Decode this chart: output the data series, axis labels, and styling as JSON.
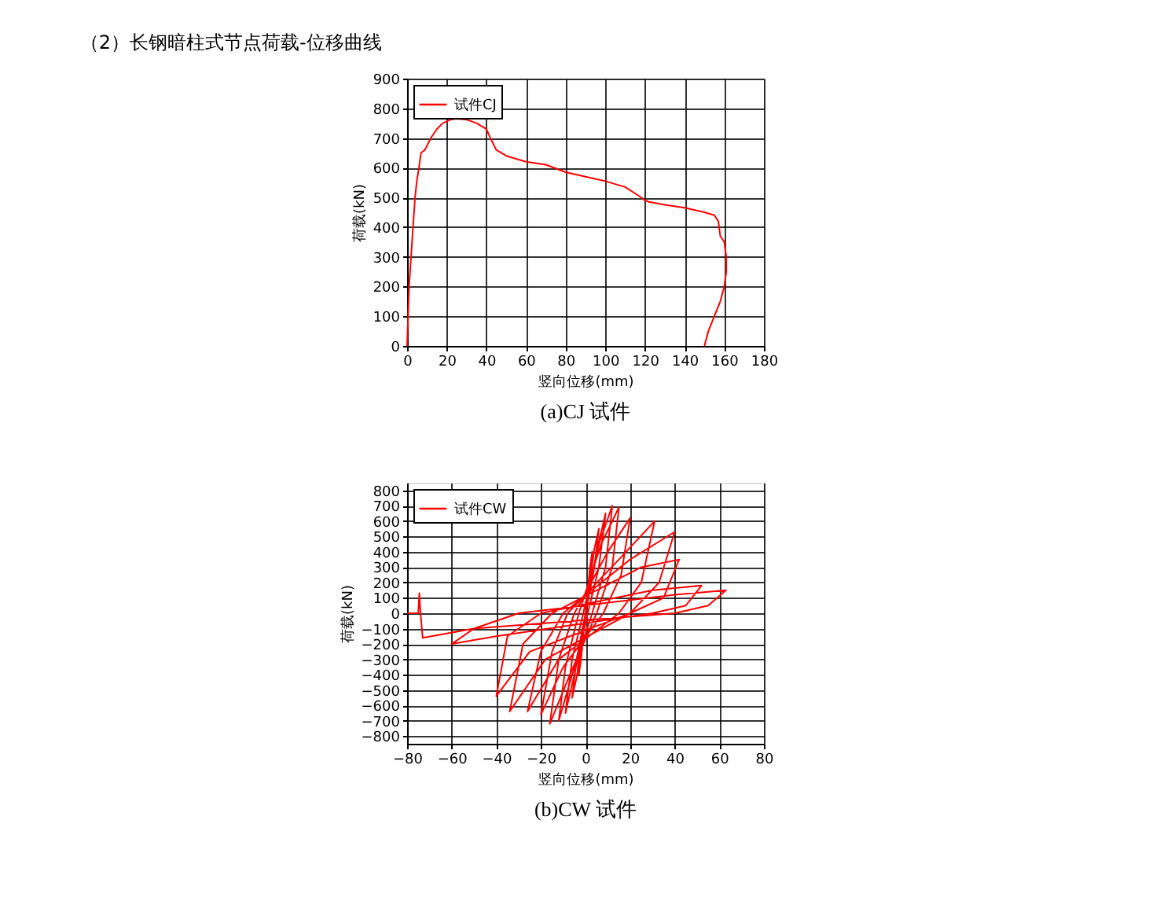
{
  "chart_data": [
    {
      "type": "line",
      "title": "（2）长钢暗柱式节点荷载-位移曲线",
      "xlabel": "竖向位移(mm)",
      "ylabel": "荷载(kN)",
      "annotations": [
        "(a)CJ 试件"
      ],
      "x": [
        0,
        0.5,
        1,
        2,
        3,
        4,
        5,
        6,
        7,
        9,
        12,
        15,
        18,
        22,
        25,
        30,
        35,
        40,
        42,
        45,
        50,
        55,
        60,
        70,
        80,
        90,
        100,
        110,
        117,
        120,
        122,
        130,
        140,
        150,
        155,
        157,
        158,
        160,
        161,
        161,
        160,
        158,
        155,
        152,
        150
      ],
      "series": [
        {
          "name": "试件CJ",
          "color": "#ff0000",
          "values": [
            0,
            100,
            200,
            300,
            400,
            500,
            560,
            600,
            650,
            660,
            700,
            730,
            750,
            762,
            765,
            762,
            750,
            730,
            700,
            660,
            640,
            630,
            620,
            610,
            585,
            570,
            555,
            535,
            505,
            490,
            485,
            475,
            465,
            450,
            440,
            420,
            370,
            350,
            300,
            250,
            200,
            150,
            100,
            50,
            0
          ]
        }
      ],
      "xlim": [
        0,
        180
      ],
      "ylim": [
        0,
        900
      ],
      "xticks": [
        0,
        20,
        40,
        60,
        80,
        100,
        120,
        140,
        160,
        180
      ],
      "yticks": [
        0,
        100,
        200,
        300,
        400,
        500,
        600,
        700,
        800,
        900
      ],
      "grid": true,
      "legend": "top left",
      "line_style": "solid",
      "marker": "none"
    },
    {
      "type": "line",
      "xlabel": "竖向位移(mm)",
      "ylabel": "荷载(kN)",
      "annotations": [
        "(b)CW 试件"
      ],
      "x": [
        0,
        2,
        3,
        1,
        0,
        -2,
        -3,
        -1,
        0,
        4,
        6,
        4,
        0,
        -4,
        -6,
        -4,
        0,
        5,
        9,
        6,
        1,
        -5,
        -9,
        -6,
        -1,
        6,
        12,
        9,
        3,
        -6,
        -12,
        -9,
        -3,
        7,
        15,
        12,
        5,
        -7,
        -16,
        -12,
        -5,
        10,
        20,
        16,
        8,
        -10,
        -20,
        -15,
        -8,
        15,
        31,
        25,
        15,
        -12,
        -26,
        -20,
        -10,
        20,
        40,
        33,
        20,
        -18,
        -34,
        -28,
        -15,
        25,
        42,
        35,
        20,
        -25,
        -40,
        -35,
        -20,
        30,
        52,
        45,
        30,
        -40,
        -60,
        -50,
        -30,
        40,
        63,
        55,
        40,
        -50,
        -73,
        -74,
        -74.5,
        -75,
        -80
      ],
      "series": [
        {
          "name": "试件CW",
          "color": "#ff0000",
          "values": [
            0,
            300,
            400,
            100,
            0,
            -300,
            -400,
            -100,
            0,
            420,
            550,
            300,
            0,
            -420,
            -550,
            -300,
            0,
            400,
            650,
            300,
            0,
            -400,
            -650,
            -300,
            0,
            450,
            700,
            300,
            0,
            -400,
            -700,
            -350,
            0,
            450,
            690,
            300,
            0,
            -400,
            -720,
            -300,
            0,
            400,
            620,
            250,
            0,
            -350,
            -660,
            -250,
            0,
            350,
            600,
            200,
            0,
            -300,
            -640,
            -250,
            0,
            350,
            530,
            200,
            0,
            -300,
            -640,
            -200,
            0,
            300,
            350,
            100,
            0,
            -250,
            -540,
            -150,
            0,
            150,
            180,
            50,
            0,
            -150,
            -200,
            -100,
            0,
            120,
            150,
            50,
            0,
            -100,
            -160,
            0,
            130,
            0,
            0
          ]
        }
      ],
      "xlim": [
        -80,
        80
      ],
      "ylim": [
        -850,
        850
      ],
      "xticks": [
        -80,
        -60,
        -40,
        -20,
        0,
        20,
        40,
        60,
        80
      ],
      "yticks": [
        -800,
        -700,
        -600,
        -500,
        -400,
        -300,
        -200,
        -100,
        0,
        100,
        200,
        300,
        400,
        500,
        600,
        700,
        800
      ],
      "grid": true,
      "legend": "top left",
      "line_style": "solid",
      "marker": "none"
    }
  ]
}
